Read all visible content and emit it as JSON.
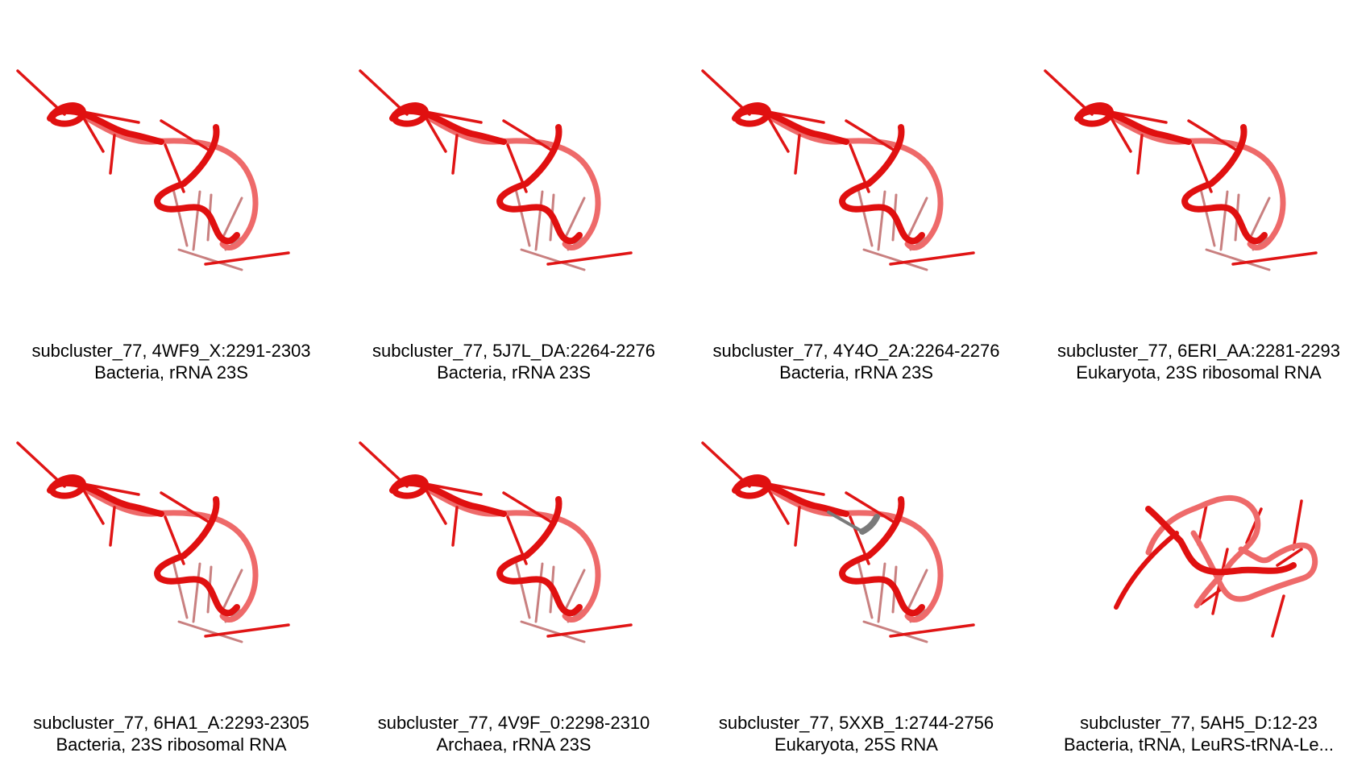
{
  "panels": [
    {
      "line1": "subcluster_77, 4WF9_X:2291-2303",
      "line2": "Bacteria, rRNA 23S",
      "variant": "hairpin"
    },
    {
      "line1": "subcluster_77, 5J7L_DA:2264-2276",
      "line2": "Bacteria, rRNA 23S",
      "variant": "hairpin"
    },
    {
      "line1": "subcluster_77, 4Y4O_2A:2264-2276",
      "line2": "Bacteria, rRNA 23S",
      "variant": "hairpin"
    },
    {
      "line1": "subcluster_77, 6ERI_AA:2281-2293",
      "line2": "Eukaryota, 23S ribosomal RNA",
      "variant": "hairpin"
    },
    {
      "line1": "subcluster_77, 6HA1_A:2293-2305",
      "line2": "Bacteria, 23S ribosomal RNA",
      "variant": "hairpin"
    },
    {
      "line1": "subcluster_77, 4V9F_0:2298-2310",
      "line2": "Archaea, rRNA 23S",
      "variant": "hairpin"
    },
    {
      "line1": "subcluster_77, 5XXB_1:2744-2756",
      "line2": "Eukaryota, 25S RNA",
      "variant": "hairpin-gray"
    },
    {
      "line1": "subcluster_77, 5AH5_D:12-23",
      "line2": "Bacteria, tRNA, LeuRS-tRNA-Le...",
      "variant": "loop"
    }
  ],
  "colors": {
    "backbone": "#e01010",
    "backbone_light": "#ee6a6a",
    "base": "#e01515",
    "base_faded": "#c98080",
    "gray": "#7a7a7a"
  }
}
